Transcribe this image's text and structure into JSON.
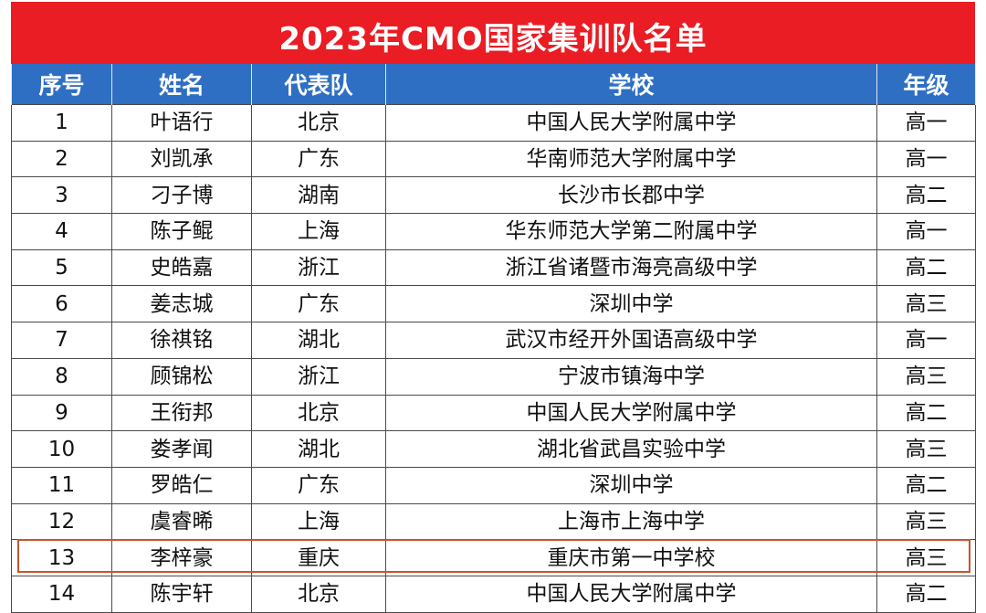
{
  "title": "2023年CMO国家集训队名单",
  "headers": [
    "序号",
    "姓名",
    "代表队",
    "学校",
    "年级"
  ],
  "rows": [
    [
      "1",
      "叶语行",
      "北京",
      "中国人民大学附属中学",
      "高一"
    ],
    [
      "2",
      "刘凯承",
      "广东",
      "华南师范大学附属中学",
      "高一"
    ],
    [
      "3",
      "刁子博",
      "湖南",
      "长沙市长郡中学",
      "高二"
    ],
    [
      "4",
      "陈子鲲",
      "上海",
      "华东师范大学第二附属中学",
      "高一"
    ],
    [
      "5",
      "史皓嘉",
      "浙江",
      "浙江省诸暨市海亮高级中学",
      "高二"
    ],
    [
      "6",
      "姜志城",
      "广东",
      "深圳中学",
      "高三"
    ],
    [
      "7",
      "徐祺铭",
      "湖北",
      "武汉市经开外国语高级中学",
      "高一"
    ],
    [
      "8",
      "顾锦松",
      "浙江",
      "宁波市镇海中学",
      "高三"
    ],
    [
      "9",
      "王衔邦",
      "北京",
      "中国人民大学附属中学",
      "高二"
    ],
    [
      "10",
      "娄孝闻",
      "湖北",
      "湖北省武昌实验中学",
      "高三"
    ],
    [
      "11",
      "罗皓仁",
      "广东",
      "深圳中学",
      "高二"
    ],
    [
      "12",
      "虞睿晞",
      "上海",
      "上海市上海中学",
      "高三"
    ],
    [
      "13",
      "李梓豪",
      "重庆",
      "重庆市第一中学校",
      "高三"
    ],
    [
      "14",
      "陈宇轩",
      "北京",
      "中国人民大学附属中学",
      "高二"
    ]
  ],
  "highlighted_row": "13",
  "colors": {
    "title_bg": "#ea1c24",
    "header_bg": "#2f6fc3",
    "highlight_border": "#c8532e"
  }
}
